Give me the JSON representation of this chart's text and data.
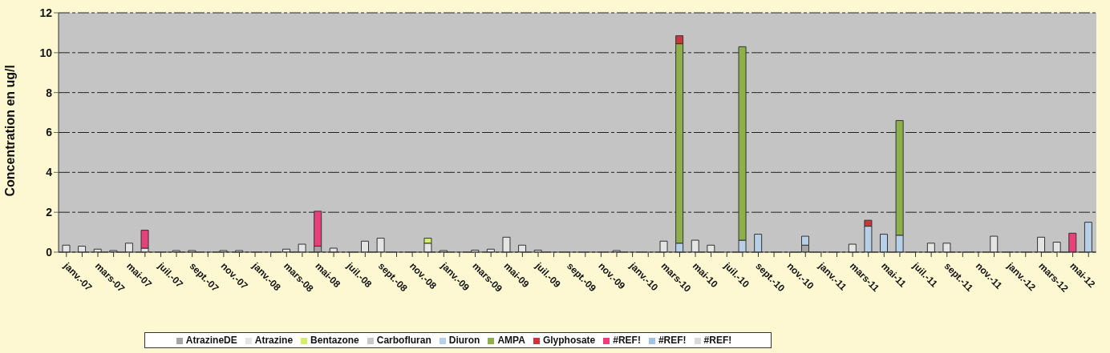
{
  "chart_data": {
    "type": "bar",
    "stacked": true,
    "ylabel": "Concentration en ug/l",
    "ylim": [
      0,
      12
    ],
    "yticks": [
      0,
      2,
      4,
      6,
      8,
      10,
      12
    ],
    "grid": "y",
    "legend": "bottom",
    "categories": [
      "janv.-07",
      null,
      "mars-07",
      null,
      "mai-07",
      null,
      "juil.-07",
      null,
      "sept.-07",
      null,
      "nov.-07",
      null,
      "janv.-08",
      null,
      "mars-08",
      null,
      "mai-08",
      null,
      "juil.-08",
      null,
      "sept.-08",
      null,
      "nov.-08",
      null,
      "janv.-09",
      null,
      "mars-09",
      null,
      "mai-09",
      null,
      "juil.-09",
      null,
      "sept.-09",
      null,
      "nov.-09",
      null,
      "janv.-10",
      null,
      "mars-10",
      null,
      "mai-10",
      null,
      "juil.-10",
      null,
      "sept.-10",
      null,
      "nov.-10",
      null,
      "janv.-11",
      null,
      "mars-11",
      null,
      "mai-11",
      null,
      "juil.-11",
      null,
      "sept.-11",
      null,
      "nov.-11",
      null,
      "janv.-12",
      null,
      "mars-12",
      null,
      "mai-12",
      null
    ],
    "series": [
      {
        "name": "AtrazineDE",
        "color": "#a6a6a6",
        "values": [
          null,
          null,
          null,
          null,
          null,
          null,
          null,
          null,
          null,
          null,
          null,
          null,
          null,
          null,
          null,
          null,
          0.3,
          null,
          null,
          null,
          null,
          null,
          null,
          null,
          null,
          null,
          null,
          null,
          null,
          null,
          null,
          null,
          null,
          null,
          null,
          null,
          null,
          null,
          null,
          null,
          null,
          null,
          null,
          null,
          null,
          null,
          null,
          0.35,
          null,
          null,
          null,
          null,
          null,
          null,
          null,
          null,
          null,
          null,
          null,
          null,
          null,
          null,
          null,
          null,
          null,
          null
        ]
      },
      {
        "name": "Atrazine",
        "color": "#e4e4e4",
        "values": [
          0.35,
          0.3,
          0.15,
          0.08,
          0.45,
          0.2,
          null,
          0.08,
          0.08,
          null,
          0.08,
          0.08,
          null,
          null,
          0.15,
          0.4,
          null,
          0.2,
          null,
          0.55,
          0.7,
          null,
          null,
          0.45,
          0.08,
          null,
          0.1,
          0.15,
          0.75,
          0.35,
          0.1,
          null,
          null,
          null,
          null,
          0.08,
          null,
          null,
          0.55,
          null,
          0.6,
          0.35,
          null,
          null,
          null,
          null,
          null,
          null,
          null,
          null,
          0.4,
          null,
          null,
          null,
          null,
          0.45,
          0.45,
          null,
          null,
          0.8,
          null,
          null,
          0.75,
          0.5,
          null,
          null
        ]
      },
      {
        "name": "Bentazone",
        "color": "#d4f06a",
        "values": [
          null,
          null,
          null,
          null,
          null,
          null,
          null,
          null,
          null,
          null,
          null,
          null,
          null,
          null,
          null,
          null,
          null,
          null,
          null,
          null,
          null,
          null,
          null,
          0.25,
          null,
          null,
          null,
          null,
          null,
          null,
          null,
          null,
          null,
          null,
          null,
          null,
          null,
          null,
          null,
          null,
          null,
          null,
          null,
          null,
          null,
          null,
          null,
          null,
          null,
          null,
          null,
          null,
          null,
          null,
          null,
          null,
          null,
          null,
          null,
          null,
          null,
          null,
          null,
          null,
          null,
          null
        ]
      },
      {
        "name": "Carbofluran",
        "color": "#c8c8c8",
        "values": [
          null,
          null,
          null,
          null,
          null,
          null,
          null,
          null,
          null,
          null,
          null,
          null,
          null,
          null,
          null,
          null,
          null,
          null,
          null,
          null,
          null,
          null,
          null,
          null,
          null,
          null,
          null,
          null,
          null,
          null,
          null,
          null,
          null,
          null,
          null,
          null,
          null,
          null,
          null,
          null,
          null,
          null,
          null,
          null,
          null,
          null,
          null,
          null,
          null,
          null,
          null,
          null,
          null,
          null,
          null,
          null,
          null,
          null,
          null,
          null,
          null,
          null,
          null,
          null,
          null,
          null
        ]
      },
      {
        "name": "Diuron",
        "color": "#b8cfe8",
        "values": [
          null,
          null,
          null,
          null,
          null,
          null,
          null,
          null,
          null,
          null,
          null,
          null,
          null,
          null,
          null,
          null,
          null,
          null,
          null,
          null,
          null,
          null,
          null,
          null,
          null,
          null,
          null,
          null,
          null,
          null,
          null,
          null,
          null,
          null,
          null,
          null,
          null,
          null,
          null,
          0.45,
          null,
          null,
          null,
          0.6,
          0.9,
          null,
          null,
          0.45,
          null,
          null,
          null,
          1.3,
          0.9,
          0.85,
          null,
          null,
          null,
          null,
          null,
          null,
          null,
          null,
          null,
          null,
          null,
          1.5
        ]
      },
      {
        "name": "AMPA",
        "color": "#8db04a",
        "values": [
          null,
          null,
          null,
          null,
          null,
          null,
          null,
          null,
          null,
          null,
          null,
          null,
          null,
          null,
          null,
          null,
          null,
          null,
          null,
          null,
          null,
          null,
          null,
          null,
          null,
          null,
          null,
          null,
          null,
          null,
          null,
          null,
          null,
          null,
          null,
          null,
          null,
          null,
          null,
          10.0,
          null,
          null,
          null,
          9.7,
          null,
          null,
          null,
          null,
          null,
          null,
          null,
          null,
          null,
          5.75,
          null,
          null,
          null,
          null,
          null,
          null,
          null,
          null,
          null,
          null,
          null,
          null
        ]
      },
      {
        "name": "Glyphosate",
        "color": "#c8383a",
        "values": [
          null,
          null,
          null,
          null,
          null,
          null,
          null,
          null,
          null,
          null,
          null,
          null,
          null,
          null,
          null,
          null,
          null,
          null,
          null,
          null,
          null,
          null,
          null,
          null,
          null,
          null,
          null,
          null,
          null,
          null,
          null,
          null,
          null,
          null,
          null,
          null,
          null,
          null,
          null,
          0.4,
          null,
          null,
          null,
          null,
          null,
          null,
          null,
          null,
          null,
          null,
          null,
          0.3,
          null,
          null,
          null,
          null,
          null,
          null,
          null,
          null,
          null,
          null,
          null,
          null,
          null,
          null
        ]
      },
      {
        "name": "#REF!",
        "color": "#e8407a",
        "values": [
          null,
          null,
          null,
          null,
          null,
          0.9,
          null,
          null,
          null,
          null,
          null,
          null,
          null,
          null,
          null,
          null,
          1.75,
          null,
          null,
          null,
          null,
          null,
          null,
          null,
          null,
          null,
          null,
          null,
          null,
          null,
          null,
          null,
          null,
          null,
          null,
          null,
          null,
          null,
          null,
          null,
          null,
          null,
          null,
          null,
          null,
          null,
          null,
          null,
          null,
          null,
          null,
          null,
          null,
          null,
          null,
          null,
          null,
          null,
          null,
          null,
          null,
          null,
          null,
          null,
          0.95,
          null
        ]
      },
      {
        "name": "#REF!",
        "color": "#9dc3e6",
        "values": [
          null,
          null,
          null,
          null,
          null,
          null,
          null,
          null,
          null,
          null,
          null,
          null,
          null,
          null,
          null,
          null,
          null,
          null,
          null,
          null,
          null,
          null,
          null,
          null,
          null,
          null,
          null,
          null,
          null,
          null,
          null,
          null,
          null,
          null,
          null,
          null,
          null,
          null,
          null,
          null,
          null,
          null,
          null,
          null,
          null,
          null,
          null,
          null,
          null,
          null,
          null,
          null,
          null,
          null,
          null,
          null,
          null,
          null,
          null,
          null,
          null,
          null,
          null,
          null,
          null,
          null
        ]
      },
      {
        "name": "#REF!",
        "color": "#d9d9d9",
        "values": [
          null,
          null,
          null,
          null,
          null,
          null,
          null,
          null,
          null,
          null,
          null,
          null,
          null,
          null,
          null,
          null,
          null,
          null,
          null,
          null,
          null,
          null,
          null,
          null,
          null,
          null,
          null,
          null,
          null,
          null,
          null,
          null,
          null,
          null,
          null,
          null,
          null,
          null,
          null,
          null,
          null,
          null,
          null,
          null,
          null,
          null,
          null,
          null,
          null,
          null,
          null,
          null,
          null,
          null,
          null,
          null,
          null,
          null,
          null,
          null,
          null,
          null,
          null,
          null,
          null,
          null
        ]
      }
    ]
  }
}
